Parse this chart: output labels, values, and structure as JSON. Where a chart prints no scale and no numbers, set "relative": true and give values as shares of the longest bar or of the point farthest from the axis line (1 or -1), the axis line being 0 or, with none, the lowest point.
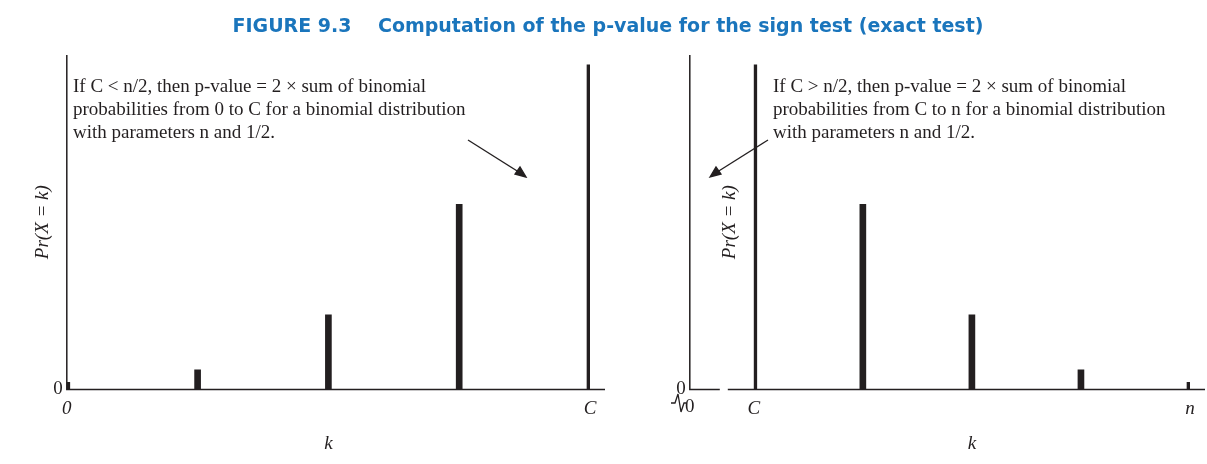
{
  "chart_data": [
    {
      "type": "bar",
      "title": "FIGURE 9.3    Computation of the p-value for the sign test (exact test)",
      "categories": [
        "0",
        null,
        null,
        null,
        "C"
      ],
      "values": [
        0.022,
        0.06,
        0.23,
        0.57,
        1
      ],
      "color": "#231f20",
      "relative": true,
      "xlabel": "k",
      "ylabel": "Pr(X = k)",
      "grid": false,
      "legend": false,
      "annotations": [
        "If C < n/2, then p-value = 2 × sum of binomial probabilities from 0 to C for a binomial distribution with parameters n and 1/2.",
        "0"
      ]
    },
    {
      "type": "bar",
      "categories": [
        "C",
        null,
        null,
        null,
        "n"
      ],
      "values": [
        1,
        0.57,
        0.23,
        0.06,
        0.022
      ],
      "color": "#231f20",
      "relative": true,
      "xlabel": "k",
      "ylabel": "Pr(X = k)",
      "grid": false,
      "legend": false,
      "annotations": [
        "If C > n/2, then p-value = 2 × sum of binomial probabilities from C to n for a binomial distribution with parameters n and 1/2.",
        "0",
        "0"
      ]
    }
  ]
}
